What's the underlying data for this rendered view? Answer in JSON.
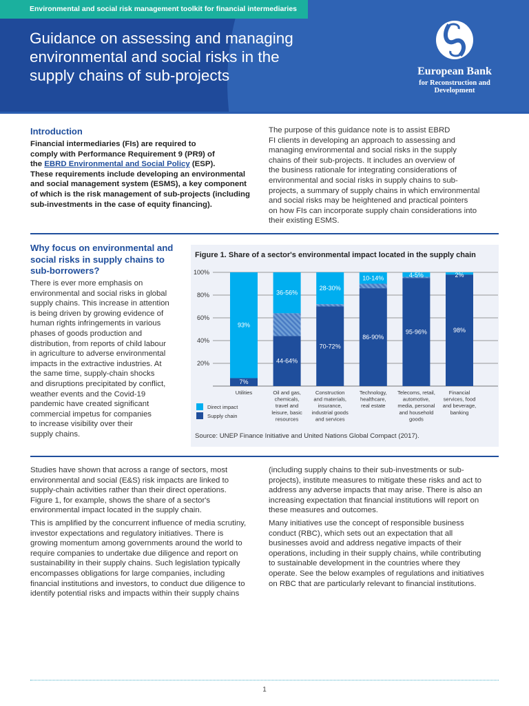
{
  "header": {
    "toolkit_label": "Environmental and social risk management toolkit for financial intermediaries",
    "title": "Guidance on assessing and managing\nenvironmental and social risks in the\nsupply chains of sub-projects",
    "logo": {
      "name": "European Bank",
      "subtitle": "for Reconstruction and Development"
    }
  },
  "intro": {
    "heading": "Introduction",
    "left_part1": "Financial intermediaries (FIs) are required to\ncomply with Performance Requirement 9 (PR9) of\nthe ",
    "link": "EBRD Environmental and Social Policy",
    "left_part2": " (ESP).\nThese requirements include developing an environmental\nand social management system (ESMS), a key component\nof which is the risk management of sub-projects (including\nsub-investments in the case of equity financing).",
    "right": "The purpose of this guidance note is to assist EBRD\nFI clients in developing an approach to assessing and\nmanaging environmental and social risks in the supply\nchains of their sub-projects. It includes an overview of\nthe business rationale for integrating considerations of\nenvironmental and social risks in supply chains to sub-\nprojects, a summary of supply chains in which environmental\nand social risks may be heightened and practical pointers\non how FIs can incorporate supply chain considerations into\ntheir existing ESMS."
  },
  "why": {
    "heading": "Why focus on environmental and\nsocial risks in supply chains to\nsub-borrowers?",
    "body": "There is ever more emphasis on\nenvironmental and social risks in global\nsupply chains. This increase in attention\nis being driven by growing evidence of\nhuman rights infringements in various\nphases of goods production and\ndistribution, from reports of child labour\nin agriculture to adverse environmental\nimpacts in the extractive industries. At\nthe same time, supply-chain shocks\nand disruptions precipitated by conflict,\nweather events and the Covid-19\npandemic have created significant\ncommercial impetus for companies\nto increase visibility over their\nsupply chains."
  },
  "chart_data": {
    "type": "bar",
    "stacked": true,
    "title": "Figure 1. Share of a sector's environmental impact located in the supply chain",
    "source": "Source: UNEP Finance Initiative and United Nations Global Compact (2017).",
    "ylim": [
      0,
      100
    ],
    "yticks": [
      "20%",
      "40%",
      "60%",
      "80%",
      "100%"
    ],
    "ytick_values": [
      20,
      40,
      60,
      80,
      100
    ],
    "grid": true,
    "legend_placement": "bottom-left",
    "categories": [
      "Utilities",
      "Oil and gas,\nchemicals,\ntravel and\nleisure, basic\nresources",
      "Construction\nand materials,\ninsurance,\nindustrial goods\nand services",
      "Technology,\nhealthcare,\nreal estate",
      "Telecoms, retail,\nautomotive,\nmedia, personal\nand household\ngoods",
      "Financial\nservices, food\nand beverage,\nbanking"
    ],
    "series": [
      {
        "name": "Direct impact",
        "color": "#00aeef",
        "labels": [
          "93%",
          "36-56%",
          "28-30%",
          "10-14%",
          "4-5%",
          "2%"
        ]
      },
      {
        "name": "Supply chain",
        "color": "#1f4e9c",
        "labels": [
          "7%",
          "44-64%",
          "70-72%",
          "86-90%",
          "95-96%",
          "98%"
        ],
        "low": [
          7,
          44,
          70,
          86,
          95,
          98
        ],
        "high": [
          7,
          64,
          72,
          90,
          96,
          98
        ]
      }
    ],
    "range_fill": "hatched"
  },
  "body2": {
    "left": "Studies have shown that across a range of sectors, most\nenvironmental and social (E&S) risk impacts are linked to\nsupply-chain activities rather than their direct operations.\nFigure 1, for example, shows the share of a sector's\nenvironmental impact located in the supply chain.",
    "left2": "This is amplified by the concurrent influence of media scrutiny,\ninvestor expectations and regulatory initiatives. There is\ngrowing momentum among governments around the world to\nrequire companies to undertake due diligence and report on\nsustainability in their supply chains. Such legislation typically\nencompasses obligations for large companies, including\nfinancial institutions and investors, to conduct due diligence to\nidentify potential risks and impacts within their supply chains",
    "right": "(including supply chains to their sub-investments or sub-\nprojects), institute measures to mitigate these risks and act to\naddress any adverse impacts that may arise. There is also an\nincreasing expectation that financial institutions will report on\nthese measures and outcomes.",
    "right2": "Many initiatives use the concept of responsible business\nconduct (RBC), which sets out an expectation that all\nbusinesses avoid and address negative impacts of their\noperations, including in their supply chains, while contributing\nto sustainable development in the countries where they\noperate. See the below examples of regulations and initiatives\non RBC that are particularly relevant to financial institutions."
  },
  "footer": {
    "page_number": "1"
  }
}
